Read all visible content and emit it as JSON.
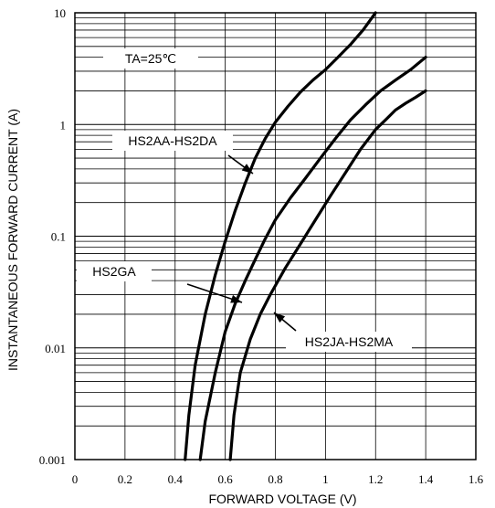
{
  "chart_data": {
    "type": "line",
    "title": "",
    "xlabel": "FORWARD VOLTAGE (V)",
    "ylabel": "INSTANTANEOUS FORWARD CURRENT (A)",
    "xlim": [
      0,
      1.6
    ],
    "ylim": [
      0.001,
      10
    ],
    "y_scale": "log",
    "grid": true,
    "x_ticks": [
      "0",
      "0.2",
      "0.4",
      "0.6",
      "0.8",
      "1",
      "1.2",
      "1.4",
      "1.6"
    ],
    "y_ticks": [
      "0.001",
      "0.01",
      "0.1",
      "1",
      "10"
    ],
    "annotations": {
      "condition": "TA=25℃",
      "label_a": "HS2AA-HS2DA",
      "label_b": "HS2GA",
      "label_c": "HS2JA-HS2MA"
    },
    "series": [
      {
        "name": "HS2AA-HS2DA",
        "x": [
          0.44,
          0.455,
          0.48,
          0.52,
          0.56,
          0.6,
          0.64,
          0.68,
          0.72,
          0.76,
          0.8,
          0.85,
          0.9,
          0.95,
          1.0,
          1.05,
          1.1,
          1.15,
          1.2
        ],
        "y": [
          0.001,
          0.0025,
          0.007,
          0.02,
          0.045,
          0.09,
          0.17,
          0.3,
          0.5,
          0.75,
          1.05,
          1.45,
          1.95,
          2.5,
          3.1,
          4.0,
          5.2,
          7.0,
          10.0
        ]
      },
      {
        "name": "HS2GA",
        "x": [
          0.5,
          0.52,
          0.56,
          0.6,
          0.64,
          0.68,
          0.72,
          0.76,
          0.8,
          0.86,
          0.92,
          0.98,
          1.04,
          1.1,
          1.16,
          1.22,
          1.28,
          1.34,
          1.4
        ],
        "y": [
          0.001,
          0.0022,
          0.006,
          0.014,
          0.025,
          0.04,
          0.062,
          0.095,
          0.14,
          0.22,
          0.33,
          0.5,
          0.75,
          1.1,
          1.5,
          2.0,
          2.5,
          3.1,
          4.0
        ]
      },
      {
        "name": "HS2JA-HS2MA",
        "x": [
          0.62,
          0.635,
          0.66,
          0.7,
          0.74,
          0.78,
          0.84,
          0.9,
          0.96,
          1.02,
          1.08,
          1.14,
          1.2,
          1.24,
          1.28,
          1.32,
          1.36,
          1.4
        ],
        "y": [
          0.001,
          0.0025,
          0.006,
          0.012,
          0.02,
          0.03,
          0.052,
          0.085,
          0.14,
          0.23,
          0.37,
          0.6,
          0.9,
          1.1,
          1.35,
          1.55,
          1.75,
          2.0
        ]
      }
    ]
  }
}
